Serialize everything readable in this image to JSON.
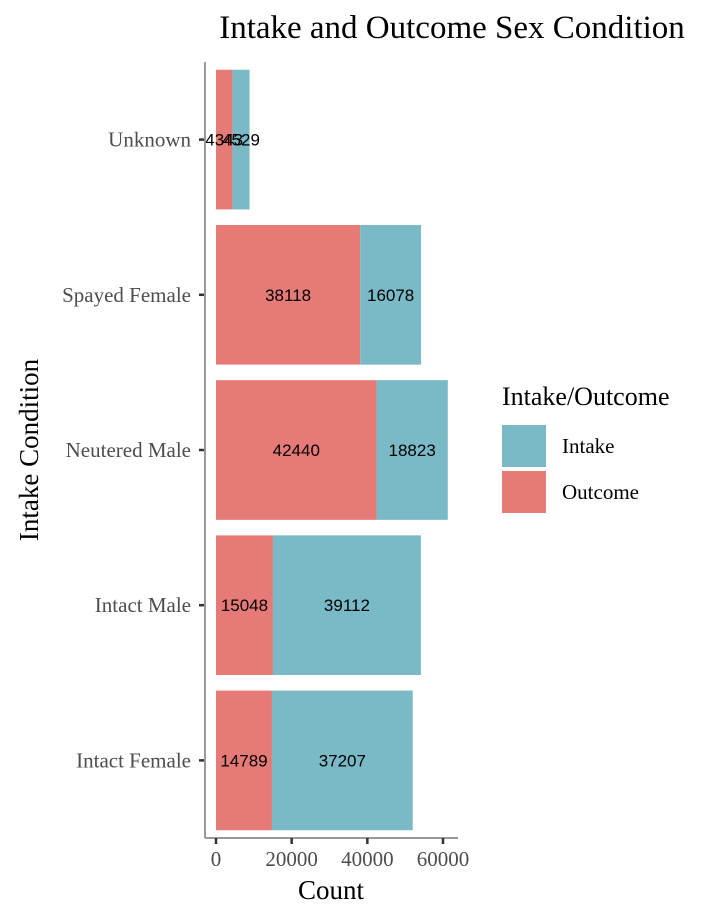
{
  "chart_data": {
    "type": "bar",
    "orientation": "horizontal",
    "stacked": true,
    "title": "Intake and Outcome Sex Condition",
    "xlabel": "Count",
    "ylabel": "Intake Condition",
    "categories": [
      "Unknown",
      "Spayed Female",
      "Neutered Male",
      "Intact Male",
      "Intact Female"
    ],
    "series": [
      {
        "name": "Outcome",
        "color": "#E57A77",
        "values": [
          4343,
          38118,
          42440,
          15048,
          14789
        ]
      },
      {
        "name": "Intake",
        "color": "#7AB9C6",
        "values": [
          4529,
          16078,
          18823,
          39112,
          37207
        ]
      }
    ],
    "xlim": [
      0,
      63000
    ],
    "xticks": [
      0,
      20000,
      40000,
      60000
    ],
    "xtick_labels": [
      "0",
      "20000",
      "40000",
      "60000"
    ],
    "legend": {
      "title": "Intake/Outcome",
      "placement": "right",
      "entries": [
        {
          "name": "Intake",
          "color": "#7AB9C6"
        },
        {
          "name": "Outcome",
          "color": "#E57A77"
        }
      ]
    },
    "grid": false
  }
}
